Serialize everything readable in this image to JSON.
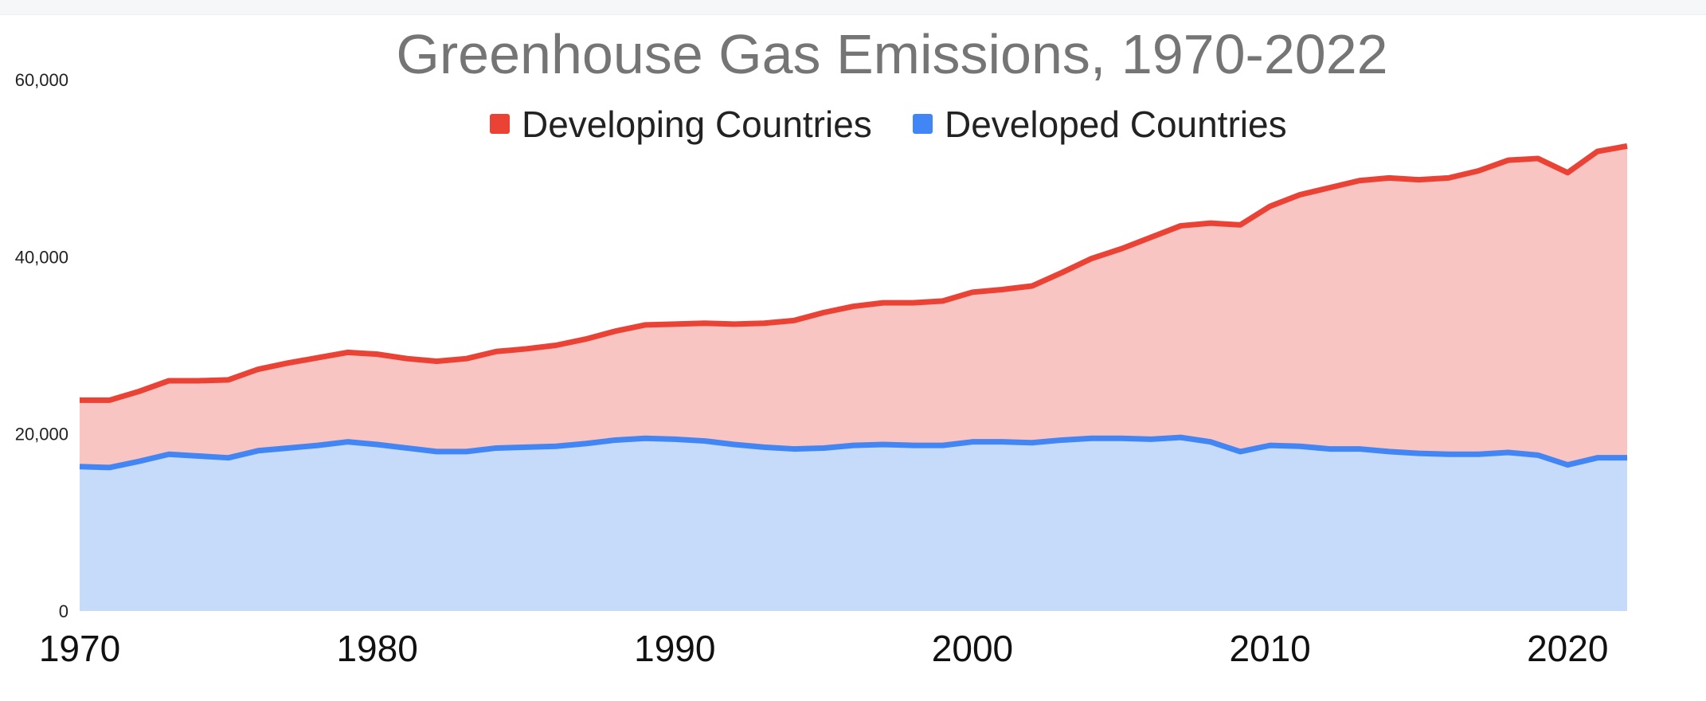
{
  "chart_data": {
    "type": "area",
    "stacked": true,
    "title": "Greenhouse Gas Emissions, 1970-2022",
    "xlabel": "",
    "ylabel": "",
    "xlim": [
      1970,
      2022
    ],
    "ylim": [
      0,
      60000
    ],
    "y_ticks": [
      0,
      20000,
      40000,
      60000
    ],
    "y_tick_labels": [
      "0",
      "20,000",
      "40,000",
      "60,000"
    ],
    "x_ticks": [
      1970,
      1980,
      1990,
      2000,
      2010,
      2020
    ],
    "x_tick_labels": [
      "1970",
      "1980",
      "1990",
      "2000",
      "2010",
      "2020"
    ],
    "gridlines": false,
    "legend_position": "top-center",
    "x": [
      1970,
      1971,
      1972,
      1973,
      1974,
      1975,
      1976,
      1977,
      1978,
      1979,
      1980,
      1981,
      1982,
      1983,
      1984,
      1985,
      1986,
      1987,
      1988,
      1989,
      1990,
      1991,
      1992,
      1993,
      1994,
      1995,
      1996,
      1997,
      1998,
      1999,
      2000,
      2001,
      2002,
      2003,
      2004,
      2005,
      2006,
      2007,
      2008,
      2009,
      2010,
      2011,
      2012,
      2013,
      2014,
      2015,
      2016,
      2017,
      2018,
      2019,
      2020,
      2021,
      2022
    ],
    "series": [
      {
        "name": "Developed Countries",
        "color": "#4285f4",
        "fill": "#c6dafa",
        "values": [
          16300,
          16200,
          16900,
          17700,
          17500,
          17300,
          18100,
          18400,
          18700,
          19100,
          18800,
          18400,
          18000,
          18000,
          18400,
          18500,
          18600,
          18900,
          19300,
          19500,
          19400,
          19200,
          18800,
          18500,
          18300,
          18400,
          18700,
          18800,
          18700,
          18700,
          19100,
          19100,
          19000,
          19300,
          19500,
          19500,
          19400,
          19600,
          19100,
          18000,
          18700,
          18600,
          18300,
          18300,
          18000,
          17800,
          17700,
          17700,
          17900,
          17600,
          16500,
          17300,
          17300
        ]
      },
      {
        "name": "Developing Countries",
        "color": "#ea4335",
        "fill": "#f8c5c2",
        "values": [
          7500,
          7600,
          7900,
          8300,
          8500,
          8800,
          9200,
          9600,
          9900,
          10100,
          10200,
          10100,
          10200,
          10500,
          10900,
          11100,
          11400,
          11800,
          12300,
          12800,
          13000,
          13300,
          13600,
          14000,
          14500,
          15300,
          15700,
          16000,
          16100,
          16300,
          16900,
          17200,
          17700,
          18900,
          20300,
          21400,
          22800,
          23900,
          24700,
          25600,
          27000,
          28400,
          29500,
          30300,
          30900,
          30900,
          31200,
          32000,
          33000,
          33500,
          33000,
          34600,
          35200
        ]
      }
    ],
    "totals_top_line": [
      23800,
      23800,
      24800,
      26000,
      26000,
      26100,
      27300,
      28000,
      28600,
      29200,
      29000,
      28500,
      28200,
      28500,
      29300,
      29600,
      30000,
      30700,
      31600,
      32300,
      32400,
      32500,
      32400,
      32500,
      32800,
      33700,
      34400,
      34800,
      34800,
      35000,
      36000,
      36300,
      36700,
      38200,
      39800,
      40900,
      42200,
      43500,
      43800,
      43600,
      45700,
      47000,
      47800,
      48600,
      48900,
      48700,
      48900,
      49700,
      50900,
      51100,
      49500,
      51900,
      52500
    ]
  }
}
